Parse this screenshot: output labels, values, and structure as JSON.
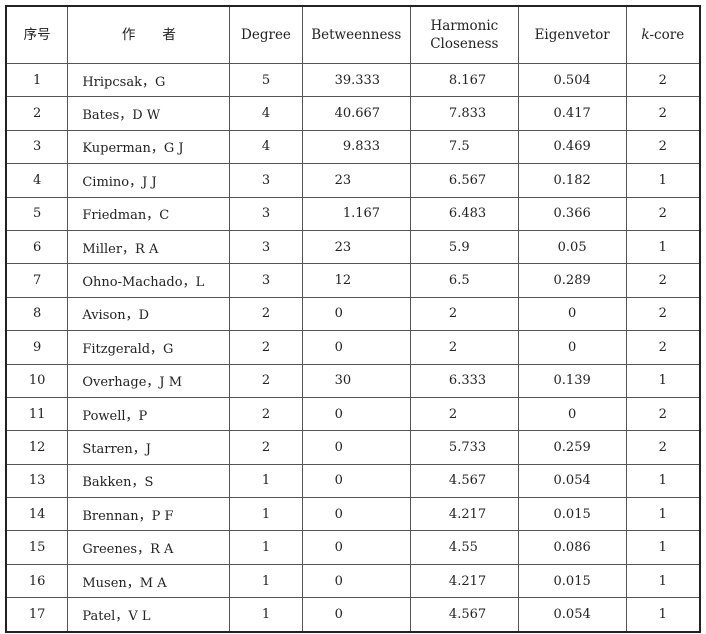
{
  "headers": {
    "index": "序号",
    "author": "作　　者",
    "degree": "Degree",
    "betweenness": "Betweenness",
    "harmonic_line1": "Harmonic",
    "harmonic_line2": "Closeness",
    "eigen": "Eigenvetor",
    "kcore_k": "k",
    "kcore_rest": "-core"
  },
  "rows": [
    {
      "n": "1",
      "author": "Hripcsak，G",
      "degree": "5",
      "btw": "39.333",
      "hc": "8.167",
      "eig": "0.504",
      "k": "2"
    },
    {
      "n": "2",
      "author": "Bates，D W",
      "degree": "4",
      "btw": "40.667",
      "hc": "7.833",
      "eig": "0.417",
      "k": "2"
    },
    {
      "n": "3",
      "author": "Kuperman，G J",
      "degree": "4",
      "btw": "  9.833",
      "hc": "7.5",
      "eig": "0.469",
      "k": "2"
    },
    {
      "n": "4",
      "author": "Cimino，J J",
      "degree": "3",
      "btw": "23",
      "hc": "6.567",
      "eig": "0.182",
      "k": "1"
    },
    {
      "n": "5",
      "author": "Friedman，C",
      "degree": "3",
      "btw": "  1.167",
      "hc": "6.483",
      "eig": "0.366",
      "k": "2"
    },
    {
      "n": "6",
      "author": "Miller，R A",
      "degree": "3",
      "btw": "23",
      "hc": "5.9",
      "eig": "0.05",
      "k": "1"
    },
    {
      "n": "7",
      "author": "Ohno-Machado，L",
      "degree": "3",
      "btw": "12",
      "hc": "6.5",
      "eig": "0.289",
      "k": "2"
    },
    {
      "n": "8",
      "author": "Avison，D",
      "degree": "2",
      "btw": "0",
      "hc": "2",
      "eig": "0",
      "k": "2"
    },
    {
      "n": "9",
      "author": "Fitzgerald，G",
      "degree": "2",
      "btw": "0",
      "hc": "2",
      "eig": "0",
      "k": "2"
    },
    {
      "n": "10",
      "author": "Overhage，J M",
      "degree": "2",
      "btw": "30",
      "hc": "6.333",
      "eig": "0.139",
      "k": "1"
    },
    {
      "n": "11",
      "author": "Powell，P",
      "degree": "2",
      "btw": "0",
      "hc": "2",
      "eig": "0",
      "k": "2"
    },
    {
      "n": "12",
      "author": "Starren，J",
      "degree": "2",
      "btw": "0",
      "hc": "5.733",
      "eig": "0.259",
      "k": "2"
    },
    {
      "n": "13",
      "author": "Bakken，S",
      "degree": "1",
      "btw": "0",
      "hc": "4.567",
      "eig": "0.054",
      "k": "1"
    },
    {
      "n": "14",
      "author": "Brennan，P F",
      "degree": "1",
      "btw": "0",
      "hc": "4.217",
      "eig": "0.015",
      "k": "1"
    },
    {
      "n": "15",
      "author": "Greenes，R A",
      "degree": "1",
      "btw": "0",
      "hc": "4.55",
      "eig": "0.086",
      "k": "1"
    },
    {
      "n": "16",
      "author": "Musen，M A",
      "degree": "1",
      "btw": "0",
      "hc": "4.217",
      "eig": "0.015",
      "k": "1"
    },
    {
      "n": "17",
      "author": "Patel，V L",
      "degree": "1",
      "btw": "0",
      "hc": "4.567",
      "eig": "0.054",
      "k": "1"
    }
  ]
}
